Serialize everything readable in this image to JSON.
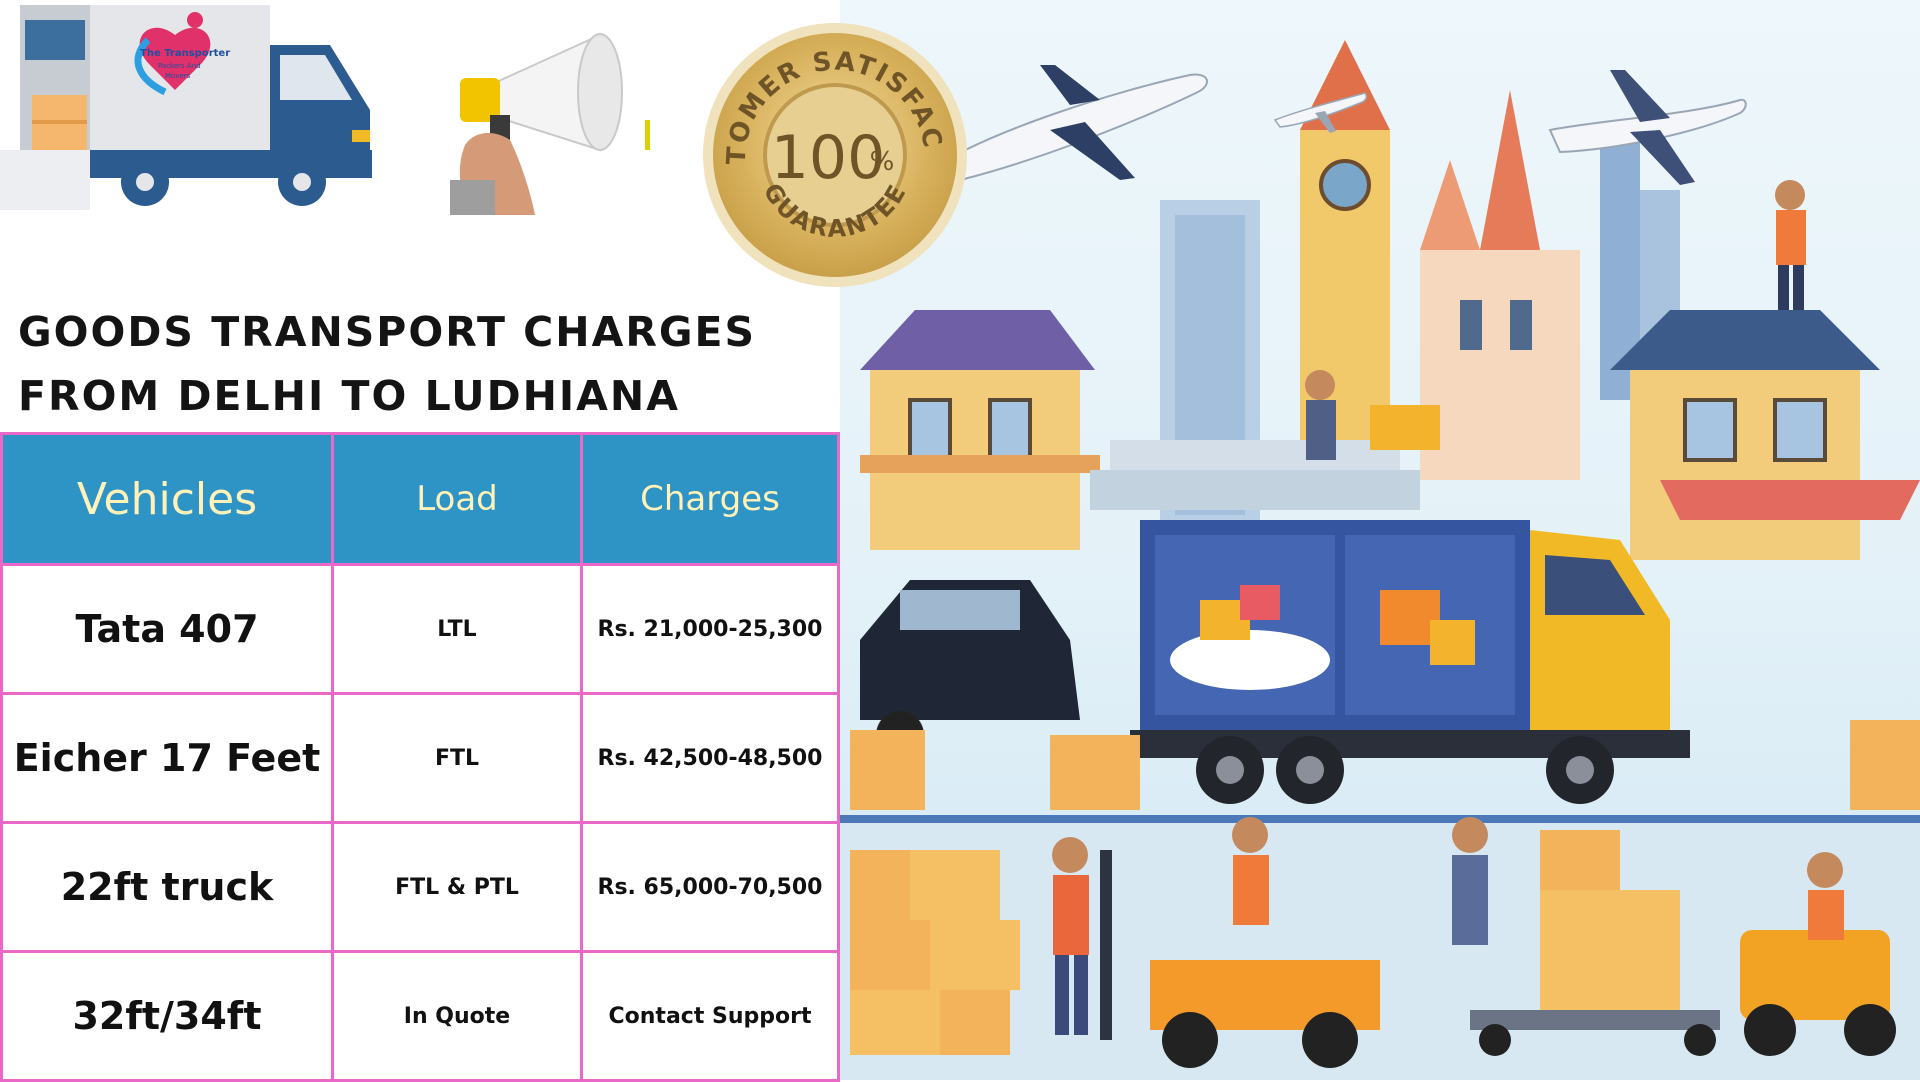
{
  "header": {
    "logo_text": "The Transporter Packers And Movers",
    "seal_top_text": "CUSTOMER SATISFACTION",
    "seal_number": "100",
    "seal_percent": "%",
    "seal_bottom_text": "GUARANTEE"
  },
  "headline": {
    "line1": "GOODS TRANSPORT CHARGES",
    "line2": "FROM DELHI TO LUDHIANA"
  },
  "table": {
    "headers": {
      "vehicles": "Vehicles",
      "load": "Load",
      "charges": "Charges"
    },
    "rows": [
      {
        "vehicle": "Tata 407",
        "load": "LTL",
        "charges": "Rs. 21,000-25,300"
      },
      {
        "vehicle": "Eicher 17 Feet",
        "load": "FTL",
        "charges": "Rs. 42,500-48,500"
      },
      {
        "vehicle": "22ft truck",
        "load": "FTL & PTL",
        "charges": "Rs. 65,000-70,500"
      },
      {
        "vehicle": "32ft/34ft",
        "load": "In Quote",
        "charges": "Contact Support"
      }
    ]
  },
  "colors": {
    "table_header_bg": "#2e94c6",
    "table_header_text": "#fff1b8",
    "table_border": "#e968c8",
    "truck_blue": "#2c5b8f",
    "truck_yellow": "#f2b926",
    "seal_gold": "#d8b15c"
  },
  "icons": [
    "delivery-truck-icon",
    "megaphone-icon",
    "guarantee-seal-icon",
    "airplane-icon"
  ]
}
